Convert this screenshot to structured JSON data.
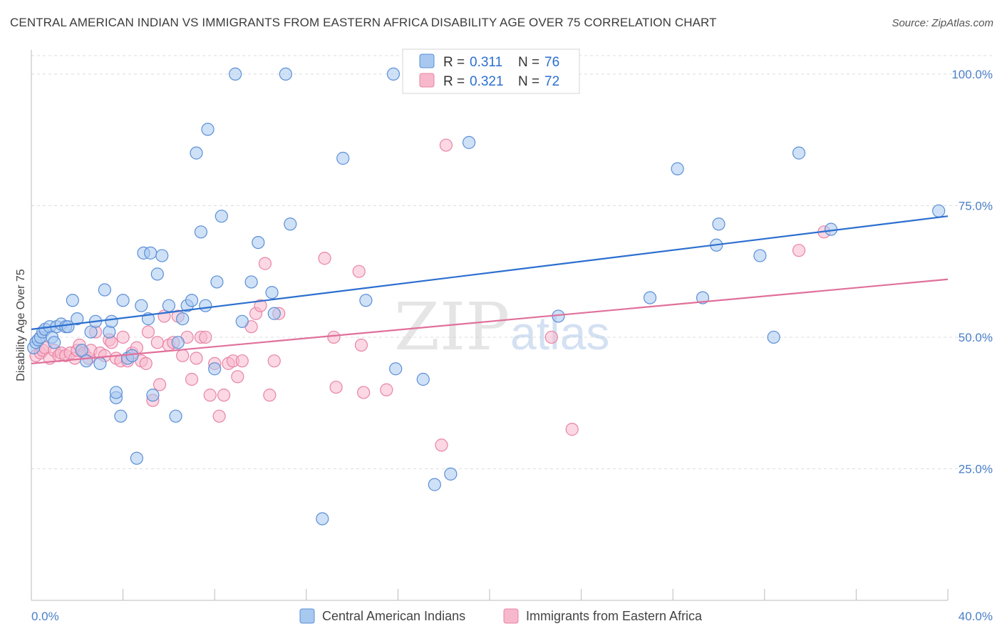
{
  "header": {
    "title": "CENTRAL AMERICAN INDIAN VS IMMIGRANTS FROM EASTERN AFRICA DISABILITY AGE OVER 75 CORRELATION CHART",
    "source": "Source: ZipAtlas.com"
  },
  "legend_box": {
    "r_label": "R =",
    "n_label": "N =",
    "rows": [
      {
        "series": "Central American Indians",
        "r": "0.311",
        "n": "76"
      },
      {
        "series": "Immigrants from Eastern Africa",
        "r": "0.321",
        "n": "72"
      }
    ]
  },
  "watermark": {
    "zip": "ZIP",
    "atlas": "atlas"
  },
  "colors": {
    "blue_fill": "#a8c8f0",
    "blue_stroke": "#5b8fd6",
    "blue_line": "#2c6fcf",
    "pink_fill": "#f7b8cc",
    "pink_stroke": "#e884a6",
    "pink_line": "#e0709a",
    "grid": "#dcdcdc",
    "tick_label": "#4a7fc8"
  },
  "chart_data": {
    "type": "scatter",
    "title": "CENTRAL AMERICAN INDIAN VS IMMIGRANTS FROM EASTERN AFRICA DISABILITY AGE OVER 75 CORRELATION CHART",
    "xlabel": "",
    "ylabel": "Disability Age Over 75",
    "xlim": [
      0,
      40
    ],
    "ylim": [
      0,
      105
    ],
    "x_tick_labels": [
      "0.0%",
      "40.0%"
    ],
    "y_ticks": [
      25,
      50,
      75,
      100
    ],
    "y_tick_labels": [
      "25.0%",
      "50.0%",
      "75.0%",
      "100.0%"
    ],
    "grid": true,
    "series": [
      {
        "name": "Central American Indians",
        "color": "blue",
        "trend": {
          "x": [
            0,
            40
          ],
          "y": [
            51.5,
            73
          ]
        },
        "points": [
          [
            0.1,
            48
          ],
          [
            0.2,
            49
          ],
          [
            0.3,
            49.5
          ],
          [
            0.4,
            50
          ],
          [
            0.5,
            51
          ],
          [
            0.6,
            51.5
          ],
          [
            0.8,
            52
          ],
          [
            0.9,
            50
          ],
          [
            1.0,
            49
          ],
          [
            1.1,
            52
          ],
          [
            1.3,
            52.5
          ],
          [
            1.5,
            52
          ],
          [
            1.6,
            52
          ],
          [
            1.8,
            57
          ],
          [
            2.0,
            53.5
          ],
          [
            2.2,
            47.5
          ],
          [
            2.4,
            45.5
          ],
          [
            2.6,
            51
          ],
          [
            2.8,
            53
          ],
          [
            3.0,
            45
          ],
          [
            3.2,
            59
          ],
          [
            3.4,
            51
          ],
          [
            3.5,
            53
          ],
          [
            3.7,
            38.5
          ],
          [
            3.7,
            39.5
          ],
          [
            3.9,
            35
          ],
          [
            4.0,
            57
          ],
          [
            4.2,
            46
          ],
          [
            4.4,
            46.5
          ],
          [
            4.6,
            27
          ],
          [
            4.8,
            56
          ],
          [
            4.9,
            66
          ],
          [
            5.1,
            53.5
          ],
          [
            5.2,
            66
          ],
          [
            5.3,
            39
          ],
          [
            5.5,
            62
          ],
          [
            5.7,
            65.5
          ],
          [
            6.0,
            56
          ],
          [
            6.3,
            35
          ],
          [
            6.4,
            49
          ],
          [
            6.6,
            53.5
          ],
          [
            6.8,
            56
          ],
          [
            7.0,
            57
          ],
          [
            7.2,
            85
          ],
          [
            7.4,
            70
          ],
          [
            7.6,
            56
          ],
          [
            7.7,
            89.5
          ],
          [
            8.0,
            44
          ],
          [
            8.1,
            60.5
          ],
          [
            8.3,
            73
          ],
          [
            8.9,
            100
          ],
          [
            9.2,
            53
          ],
          [
            9.6,
            60.5
          ],
          [
            9.9,
            68
          ],
          [
            10.5,
            58.5
          ],
          [
            10.6,
            54.5
          ],
          [
            11.1,
            100
          ],
          [
            11.3,
            71.5
          ],
          [
            12.7,
            15.5
          ],
          [
            13.6,
            84
          ],
          [
            14.6,
            57
          ],
          [
            15.8,
            100
          ],
          [
            15.9,
            44
          ],
          [
            17.1,
            42
          ],
          [
            17.6,
            22
          ],
          [
            18.3,
            24
          ],
          [
            19.1,
            87
          ],
          [
            23.0,
            54
          ],
          [
            27.0,
            57.5
          ],
          [
            28.2,
            82
          ],
          [
            29.3,
            57.5
          ],
          [
            29.9,
            67.5
          ],
          [
            30.0,
            71.5
          ],
          [
            31.8,
            65.5
          ],
          [
            32.4,
            50
          ],
          [
            33.5,
            85
          ],
          [
            34.9,
            70.5
          ],
          [
            39.6,
            74
          ]
        ]
      },
      {
        "name": "Immigrants from Eastern Africa",
        "color": "pink",
        "trend": {
          "x": [
            0,
            40
          ],
          "y": [
            45,
            61
          ]
        },
        "points": [
          [
            0.2,
            46.5
          ],
          [
            0.4,
            47
          ],
          [
            0.5,
            47.5
          ],
          [
            0.6,
            48
          ],
          [
            0.8,
            46
          ],
          [
            1.0,
            47.5
          ],
          [
            1.2,
            46.5
          ],
          [
            1.3,
            47
          ],
          [
            1.5,
            46.5
          ],
          [
            1.7,
            47
          ],
          [
            1.9,
            46
          ],
          [
            2.0,
            47.5
          ],
          [
            2.1,
            48.5
          ],
          [
            2.3,
            47
          ],
          [
            2.5,
            46
          ],
          [
            2.6,
            47.5
          ],
          [
            2.8,
            51
          ],
          [
            3.0,
            47
          ],
          [
            3.2,
            46.5
          ],
          [
            3.4,
            49.5
          ],
          [
            3.5,
            49
          ],
          [
            3.7,
            46
          ],
          [
            3.9,
            45.5
          ],
          [
            4.0,
            50
          ],
          [
            4.2,
            45.5
          ],
          [
            4.4,
            47
          ],
          [
            4.6,
            48
          ],
          [
            4.8,
            45.5
          ],
          [
            5.0,
            45
          ],
          [
            5.1,
            51
          ],
          [
            5.3,
            38
          ],
          [
            5.5,
            49
          ],
          [
            5.6,
            41
          ],
          [
            5.8,
            54
          ],
          [
            6.0,
            48.5
          ],
          [
            6.2,
            49
          ],
          [
            6.4,
            54
          ],
          [
            6.6,
            46.5
          ],
          [
            6.8,
            50
          ],
          [
            7.0,
            42
          ],
          [
            7.2,
            46
          ],
          [
            7.4,
            50
          ],
          [
            7.6,
            50
          ],
          [
            7.8,
            39
          ],
          [
            8.0,
            45
          ],
          [
            8.2,
            35
          ],
          [
            8.4,
            39
          ],
          [
            8.6,
            45
          ],
          [
            8.8,
            45.5
          ],
          [
            9.0,
            42.5
          ],
          [
            9.2,
            45.5
          ],
          [
            9.6,
            52
          ],
          [
            9.8,
            54.5
          ],
          [
            10.0,
            56
          ],
          [
            10.2,
            64
          ],
          [
            10.4,
            39
          ],
          [
            10.6,
            45.5
          ],
          [
            10.8,
            54.5
          ],
          [
            12.8,
            65
          ],
          [
            13.2,
            50
          ],
          [
            13.3,
            40.5
          ],
          [
            14.3,
            62.5
          ],
          [
            14.4,
            48.5
          ],
          [
            14.5,
            39.5
          ],
          [
            15.5,
            40
          ],
          [
            17.9,
            29.5
          ],
          [
            18.1,
            86.5
          ],
          [
            22.7,
            50
          ],
          [
            23.6,
            32.5
          ],
          [
            33.5,
            66.5
          ],
          [
            34.6,
            70
          ]
        ]
      }
    ]
  },
  "bottom_legend": [
    {
      "label": "Central American Indians",
      "color": "blue"
    },
    {
      "label": "Immigrants from Eastern Africa",
      "color": "pink"
    }
  ]
}
